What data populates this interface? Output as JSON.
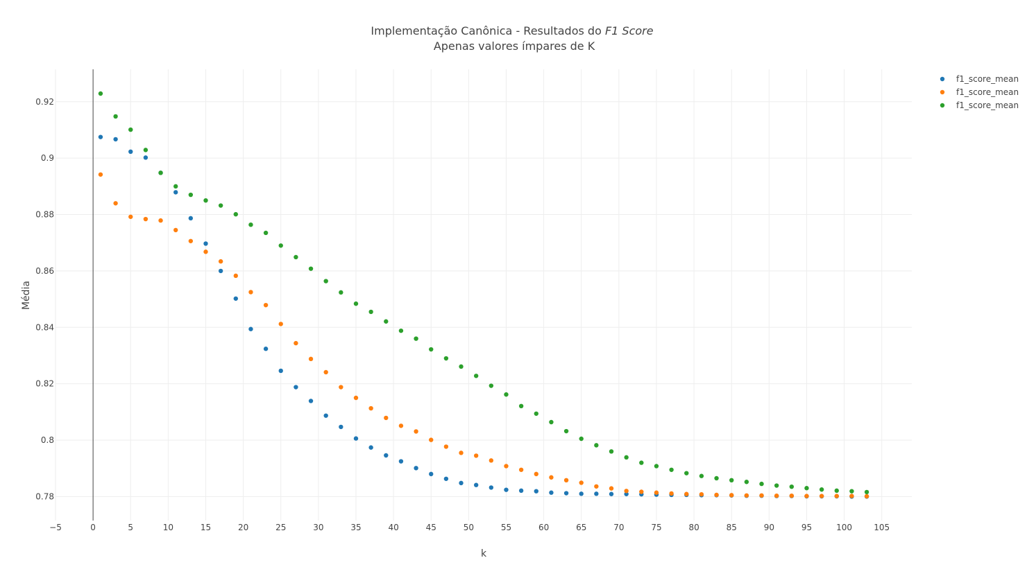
{
  "chart_data": {
    "type": "scatter",
    "title_main": "Implementação Canônica - Resultados do ",
    "title_italic": "F1 Score",
    "subtitle": "Apenas valores ímpares de K",
    "xlabel": "k",
    "ylabel": "Média",
    "xlim": [
      -5,
      109
    ],
    "ylim": [
      0.7715,
      0.9315
    ],
    "xticks": [
      -5,
      0,
      5,
      10,
      15,
      20,
      25,
      30,
      35,
      40,
      45,
      50,
      55,
      60,
      65,
      70,
      75,
      80,
      85,
      90,
      95,
      100,
      105
    ],
    "yticks": [
      0.78,
      0.8,
      0.82,
      0.84,
      0.86,
      0.88,
      0.9,
      0.92
    ],
    "ytick_labels": [
      "0.78",
      "0.8",
      "0.82",
      "0.84",
      "0.86",
      "0.88",
      "0.9",
      "0.92"
    ],
    "grid": true,
    "legend_position": "top-right",
    "x": [
      1,
      3,
      5,
      7,
      9,
      11,
      13,
      15,
      17,
      19,
      21,
      23,
      25,
      27,
      29,
      31,
      33,
      35,
      37,
      39,
      41,
      43,
      45,
      47,
      49,
      51,
      53,
      55,
      57,
      59,
      61,
      63,
      65,
      67,
      69,
      71,
      73,
      75,
      77,
      79,
      81,
      83,
      85,
      87,
      89,
      91,
      93,
      95,
      97,
      99,
      101,
      103
    ],
    "series": [
      {
        "name": "f1_score_mean",
        "color": "#1f77b4",
        "values": [
          0.9075,
          0.9067,
          0.9023,
          0.9002,
          0.8948,
          0.8879,
          0.8787,
          0.8697,
          0.86,
          0.8502,
          0.8394,
          0.8324,
          0.8246,
          0.8188,
          0.8139,
          0.8087,
          0.8047,
          0.8006,
          0.7974,
          0.7946,
          0.7925,
          0.7901,
          0.788,
          0.7863,
          0.7848,
          0.7841,
          0.7832,
          0.7824,
          0.7821,
          0.7819,
          0.7814,
          0.7812,
          0.781,
          0.781,
          0.7809,
          0.7809,
          0.7808,
          0.7807,
          0.7806,
          0.7806,
          0.7805,
          0.7805,
          0.7804,
          0.7803,
          0.7803,
          0.7802,
          0.7802,
          0.7801,
          0.7801,
          0.7801,
          0.78,
          0.78
        ]
      },
      {
        "name": "f1_score_mean",
        "color": "#ff7f0e",
        "values": [
          0.8942,
          0.884,
          0.8792,
          0.8784,
          0.8779,
          0.8745,
          0.8706,
          0.8668,
          0.8634,
          0.8583,
          0.8525,
          0.8479,
          0.8412,
          0.8344,
          0.8288,
          0.8241,
          0.8188,
          0.815,
          0.8113,
          0.8079,
          0.8051,
          0.8031,
          0.8001,
          0.7977,
          0.7955,
          0.7945,
          0.7928,
          0.7908,
          0.7895,
          0.788,
          0.7868,
          0.7858,
          0.7849,
          0.7836,
          0.7829,
          0.782,
          0.7817,
          0.7814,
          0.7811,
          0.7809,
          0.7808,
          0.7806,
          0.7805,
          0.7804,
          0.7804,
          0.7803,
          0.7803,
          0.7802,
          0.7802,
          0.7802,
          0.7802,
          0.7801
        ]
      },
      {
        "name": "f1_score_mean",
        "color": "#2ca02c",
        "values": [
          0.9229,
          0.9148,
          0.9101,
          0.9029,
          0.8948,
          0.89,
          0.887,
          0.885,
          0.8832,
          0.8801,
          0.8764,
          0.8735,
          0.869,
          0.8649,
          0.8608,
          0.8564,
          0.8524,
          0.8484,
          0.8455,
          0.8421,
          0.8388,
          0.836,
          0.8322,
          0.829,
          0.8261,
          0.8228,
          0.8193,
          0.8162,
          0.8121,
          0.8094,
          0.8064,
          0.8032,
          0.8005,
          0.7982,
          0.796,
          0.7939,
          0.792,
          0.7908,
          0.7895,
          0.7883,
          0.7873,
          0.7865,
          0.7858,
          0.7852,
          0.7845,
          0.7839,
          0.7835,
          0.783,
          0.7825,
          0.7821,
          0.7819,
          0.7816
        ]
      }
    ]
  }
}
